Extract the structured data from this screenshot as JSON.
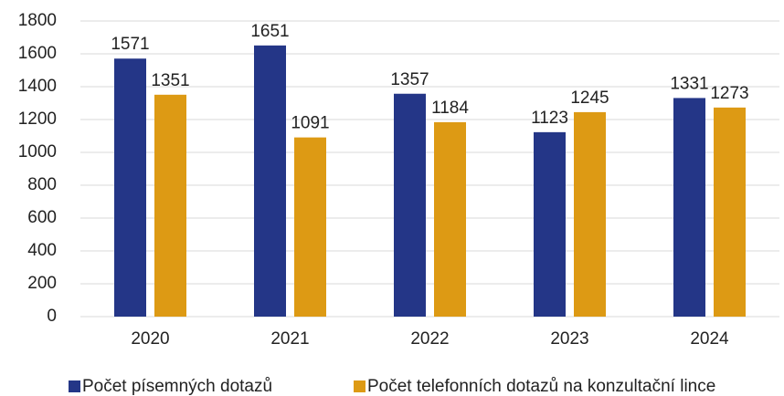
{
  "chart_data": {
    "type": "bar",
    "categories": [
      "2020",
      "2021",
      "2022",
      "2023",
      "2024"
    ],
    "series": [
      {
        "name": "Počet písemných dotazů",
        "color": "#243687",
        "values": [
          1571,
          1651,
          1357,
          1123,
          1331
        ]
      },
      {
        "name": "Počet telefonních dotazů na konzultační lince",
        "color": "#dd9a14",
        "values": [
          1351,
          1091,
          1184,
          1245,
          1273
        ]
      }
    ],
    "ylim": [
      0,
      1800
    ],
    "yticks": [
      0,
      200,
      400,
      600,
      800,
      1000,
      1200,
      1400,
      1600,
      1800
    ],
    "grid": true,
    "legend": "bottom"
  }
}
